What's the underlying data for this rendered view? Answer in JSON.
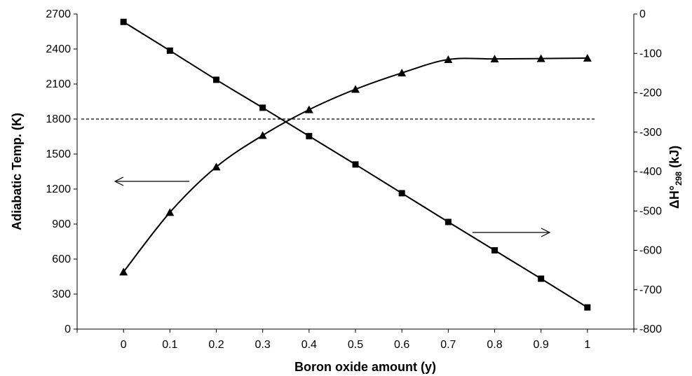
{
  "chart_data": {
    "type": "line",
    "title": "",
    "xlabel": "Boron oxide amount (y)",
    "ylabel_left": "Adiabatic Temp. (K)",
    "ylabel_right": {
      "main": "ΔH°",
      "sub": "298",
      "unit": " (kJ)"
    },
    "x": [
      0,
      0.1,
      0.2,
      0.3,
      0.4,
      0.5,
      0.6,
      0.7,
      0.8,
      0.9,
      1
    ],
    "x_tick_labels": [
      "0",
      "0.1",
      "0.2",
      "0.3",
      "0.4",
      "0.5",
      "0.6",
      "0.7",
      "0.8",
      "0.9",
      "1"
    ],
    "xlim": [
      -0.1,
      1.1
    ],
    "y_left_lim": [
      0,
      2700
    ],
    "y_left_ticks": [
      0,
      300,
      600,
      900,
      1200,
      1500,
      1800,
      2100,
      2400,
      2700
    ],
    "y_left_tick_labels": [
      "0",
      "300",
      "600",
      "900",
      "1200",
      "1500",
      "1800",
      "2100",
      "2400",
      "2700"
    ],
    "y_right_lim": [
      -800,
      0
    ],
    "y_right_ticks": [
      -800,
      -700,
      -600,
      -500,
      -400,
      -300,
      -200,
      -100,
      0
    ],
    "y_right_tick_labels": [
      "-800",
      "-700",
      "-600",
      "-500",
      "-400",
      "-300",
      "-200",
      "-100",
      "0"
    ],
    "series": [
      {
        "axis": "left",
        "marker": "triangle",
        "values": [
          490,
          1000,
          1390,
          1660,
          1880,
          2055,
          2195,
          2310,
          2315,
          2318,
          2322
        ]
      },
      {
        "axis": "right",
        "marker": "square",
        "values": [
          -20,
          -93,
          -167,
          -238,
          -310,
          -382,
          -455,
          -528,
          -600,
          -672,
          -745
        ]
      }
    ],
    "reference_line": {
      "axis": "left",
      "value": 1800,
      "style": "dashed"
    },
    "annotations": [
      {
        "type": "arrow",
        "direction": "left",
        "points_to": "left axis"
      },
      {
        "type": "arrow",
        "direction": "right",
        "points_to": "right axis"
      }
    ],
    "grid": false,
    "legend": "none"
  }
}
